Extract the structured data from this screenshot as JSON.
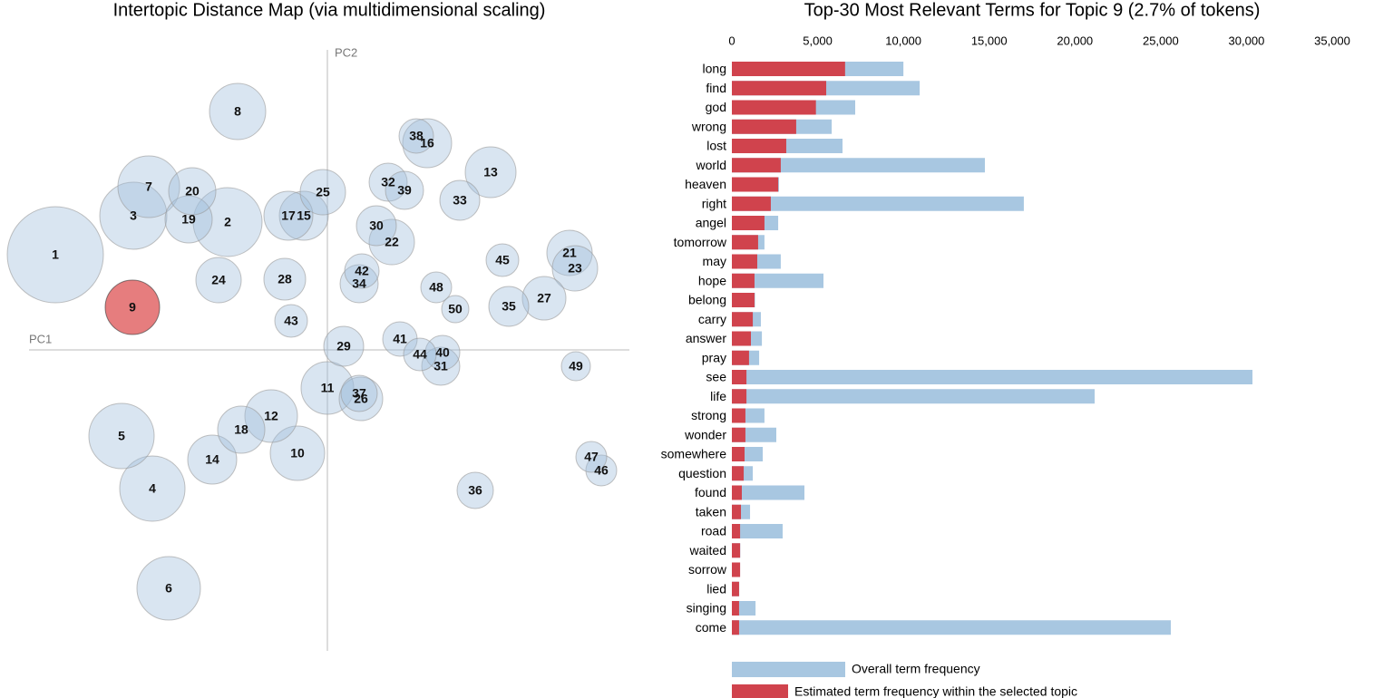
{
  "chart_data": [
    {
      "type": "bubble",
      "title": "Intertopic Distance Map (via multidimensional scaling)",
      "x_label": "PC1",
      "y_label": "PC2",
      "xlim": [
        -329,
        333
      ],
      "ylim": [
        -332,
        331
      ],
      "labels": [
        "1",
        "2",
        "3",
        "4",
        "5",
        "6",
        "7",
        "8",
        "9",
        "10",
        "11",
        "12",
        "13",
        "14",
        "15",
        "16",
        "17",
        "18",
        "19",
        "20",
        "21",
        "22",
        "23",
        "24",
        "25",
        "26",
        "27",
        "28",
        "29",
        "30",
        "31",
        "32",
        "33",
        "34",
        "35",
        "36",
        "37",
        "38",
        "39",
        "40",
        "41",
        "42",
        "43",
        "44",
        "45",
        "46",
        "47",
        "48",
        "49",
        "50"
      ],
      "x": [
        -300,
        -110,
        -214,
        -193,
        -227,
        -175,
        -197,
        -99,
        -215,
        -33,
        0,
        -62,
        180,
        -127,
        -26,
        110,
        -43,
        -95,
        -153,
        -149,
        267,
        71,
        273,
        -120,
        -5,
        37,
        239,
        -47,
        18,
        54,
        125,
        67,
        146,
        35,
        200,
        163,
        35,
        98,
        85,
        127,
        80,
        38,
        -40,
        102,
        193,
        302,
        291,
        120,
        274,
        141
      ],
      "y": [
        105,
        141,
        148,
        -153,
        -95,
        -263,
        180,
        263,
        47,
        -114,
        -42,
        -73,
        196,
        -121,
        148,
        228,
        148,
        -88,
        144,
        175,
        107,
        119,
        90,
        77,
        174,
        -54,
        57,
        78,
        4,
        137,
        -18,
        185,
        165,
        73,
        48,
        -155,
        -48,
        236,
        176,
        -3,
        12,
        87,
        32,
        -5,
        99,
        -133,
        -118,
        69,
        -18,
        45
      ],
      "sizes": [
        53,
        38,
        37,
        36,
        36,
        35,
        34,
        31,
        30,
        30,
        29,
        29,
        28,
        27,
        27,
        27,
        27,
        26,
        26,
        26,
        25,
        25,
        25,
        25,
        25,
        24,
        24,
        23,
        22,
        22,
        21,
        21,
        22,
        21,
        22,
        20,
        20,
        19,
        21,
        19,
        19,
        19,
        18,
        18,
        18,
        17,
        17,
        17,
        16,
        15
      ],
      "colors": [
        "#9fbfdc",
        "#9fbfdc",
        "#9fbfdc",
        "#9fbfdc",
        "#9fbfdc",
        "#9fbfdc",
        "#9fbfdc",
        "#9fbfdc",
        "#d62728",
        "#9fbfdc",
        "#9fbfdc",
        "#9fbfdc",
        "#9fbfdc",
        "#9fbfdc",
        "#9fbfdc",
        "#9fbfdc",
        "#9fbfdc",
        "#9fbfdc",
        "#9fbfdc",
        "#9fbfdc",
        "#9fbfdc",
        "#9fbfdc",
        "#9fbfdc",
        "#9fbfdc",
        "#9fbfdc",
        "#9fbfdc",
        "#9fbfdc",
        "#9fbfdc",
        "#9fbfdc",
        "#9fbfdc",
        "#9fbfdc",
        "#9fbfdc",
        "#9fbfdc",
        "#9fbfdc",
        "#9fbfdc",
        "#9fbfdc",
        "#9fbfdc",
        "#9fbfdc",
        "#9fbfdc",
        "#9fbfdc",
        "#9fbfdc",
        "#9fbfdc",
        "#9fbfdc",
        "#9fbfdc",
        "#9fbfdc",
        "#9fbfdc",
        "#9fbfdc",
        "#9fbfdc",
        "#9fbfdc",
        "#9fbfdc"
      ]
    },
    {
      "type": "bar",
      "orientation": "horizontal",
      "barmode": "overlay",
      "title": "Top-30 Most Relevant Terms for Topic 9 (2.7% of tokens)",
      "categories": [
        "long",
        "find",
        "god",
        "wrong",
        "lost",
        "world",
        "heaven",
        "right",
        "angel",
        "tomorrow",
        "may",
        "hope",
        "belong",
        "carry",
        "answer",
        "pray",
        "see",
        "life",
        "strong",
        "wonder",
        "somewhere",
        "question",
        "found",
        "taken",
        "road",
        "waited",
        "sorrow",
        "lied",
        "singing",
        "come"
      ],
      "series": [
        {
          "name": "Overall term frequency",
          "color": "#a8c7e1",
          "values": [
            10000,
            10950,
            7190,
            5820,
            6450,
            14750,
            2750,
            17020,
            2700,
            1900,
            2850,
            5340,
            1350,
            1690,
            1750,
            1590,
            30350,
            21150,
            1900,
            2590,
            1800,
            1220,
            4230,
            1060,
            2960,
            490,
            480,
            430,
            1380,
            25590
          ]
        },
        {
          "name": "Estimated term frequency within the selected topic",
          "color": "#d0434d",
          "values": [
            6600,
            5500,
            4900,
            3750,
            3170,
            2850,
            2700,
            2270,
            1900,
            1530,
            1480,
            1320,
            1320,
            1220,
            1110,
            1000,
            850,
            850,
            790,
            790,
            740,
            690,
            580,
            530,
            480,
            480,
            480,
            420,
            420,
            420
          ]
        }
      ],
      "xlim": [
        0,
        35000
      ],
      "xticks": [
        0,
        {
          "value": 5000,
          "label": "5,000"
        },
        {
          "value": 10000,
          "label": "10,000"
        },
        {
          "value": 15000,
          "label": "15,000"
        },
        {
          "value": 20000,
          "label": "20,000"
        },
        {
          "value": 25000,
          "label": "25,000"
        },
        {
          "value": 30000,
          "label": "30,000"
        },
        {
          "value": 35000,
          "label": "35,000"
        }
      ]
    }
  ]
}
